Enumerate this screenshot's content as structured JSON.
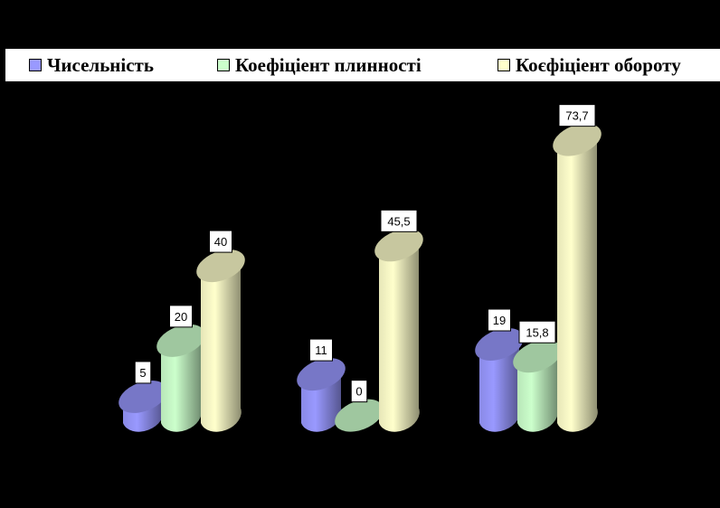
{
  "chart_data": {
    "type": "bar",
    "categories": [
      "",
      "",
      ""
    ],
    "series": [
      {
        "name": "Чисельність",
        "values": [
          5,
          11,
          19
        ],
        "color": "#9999ff",
        "label_text": [
          "5",
          "11",
          "19"
        ]
      },
      {
        "name": "Коефіціент плинності",
        "values": [
          20,
          0,
          15.8
        ],
        "color": "#ccffcc",
        "label_text": [
          "20",
          "0",
          "15,8"
        ]
      },
      {
        "name": "Коєфіціент обороту",
        "values": [
          40,
          45.5,
          73.7
        ],
        "color": "#ffffcc",
        "label_text": [
          "40",
          "45,5",
          "73,7"
        ]
      }
    ],
    "legend_position": "top",
    "grid": false,
    "background": "#000000"
  }
}
